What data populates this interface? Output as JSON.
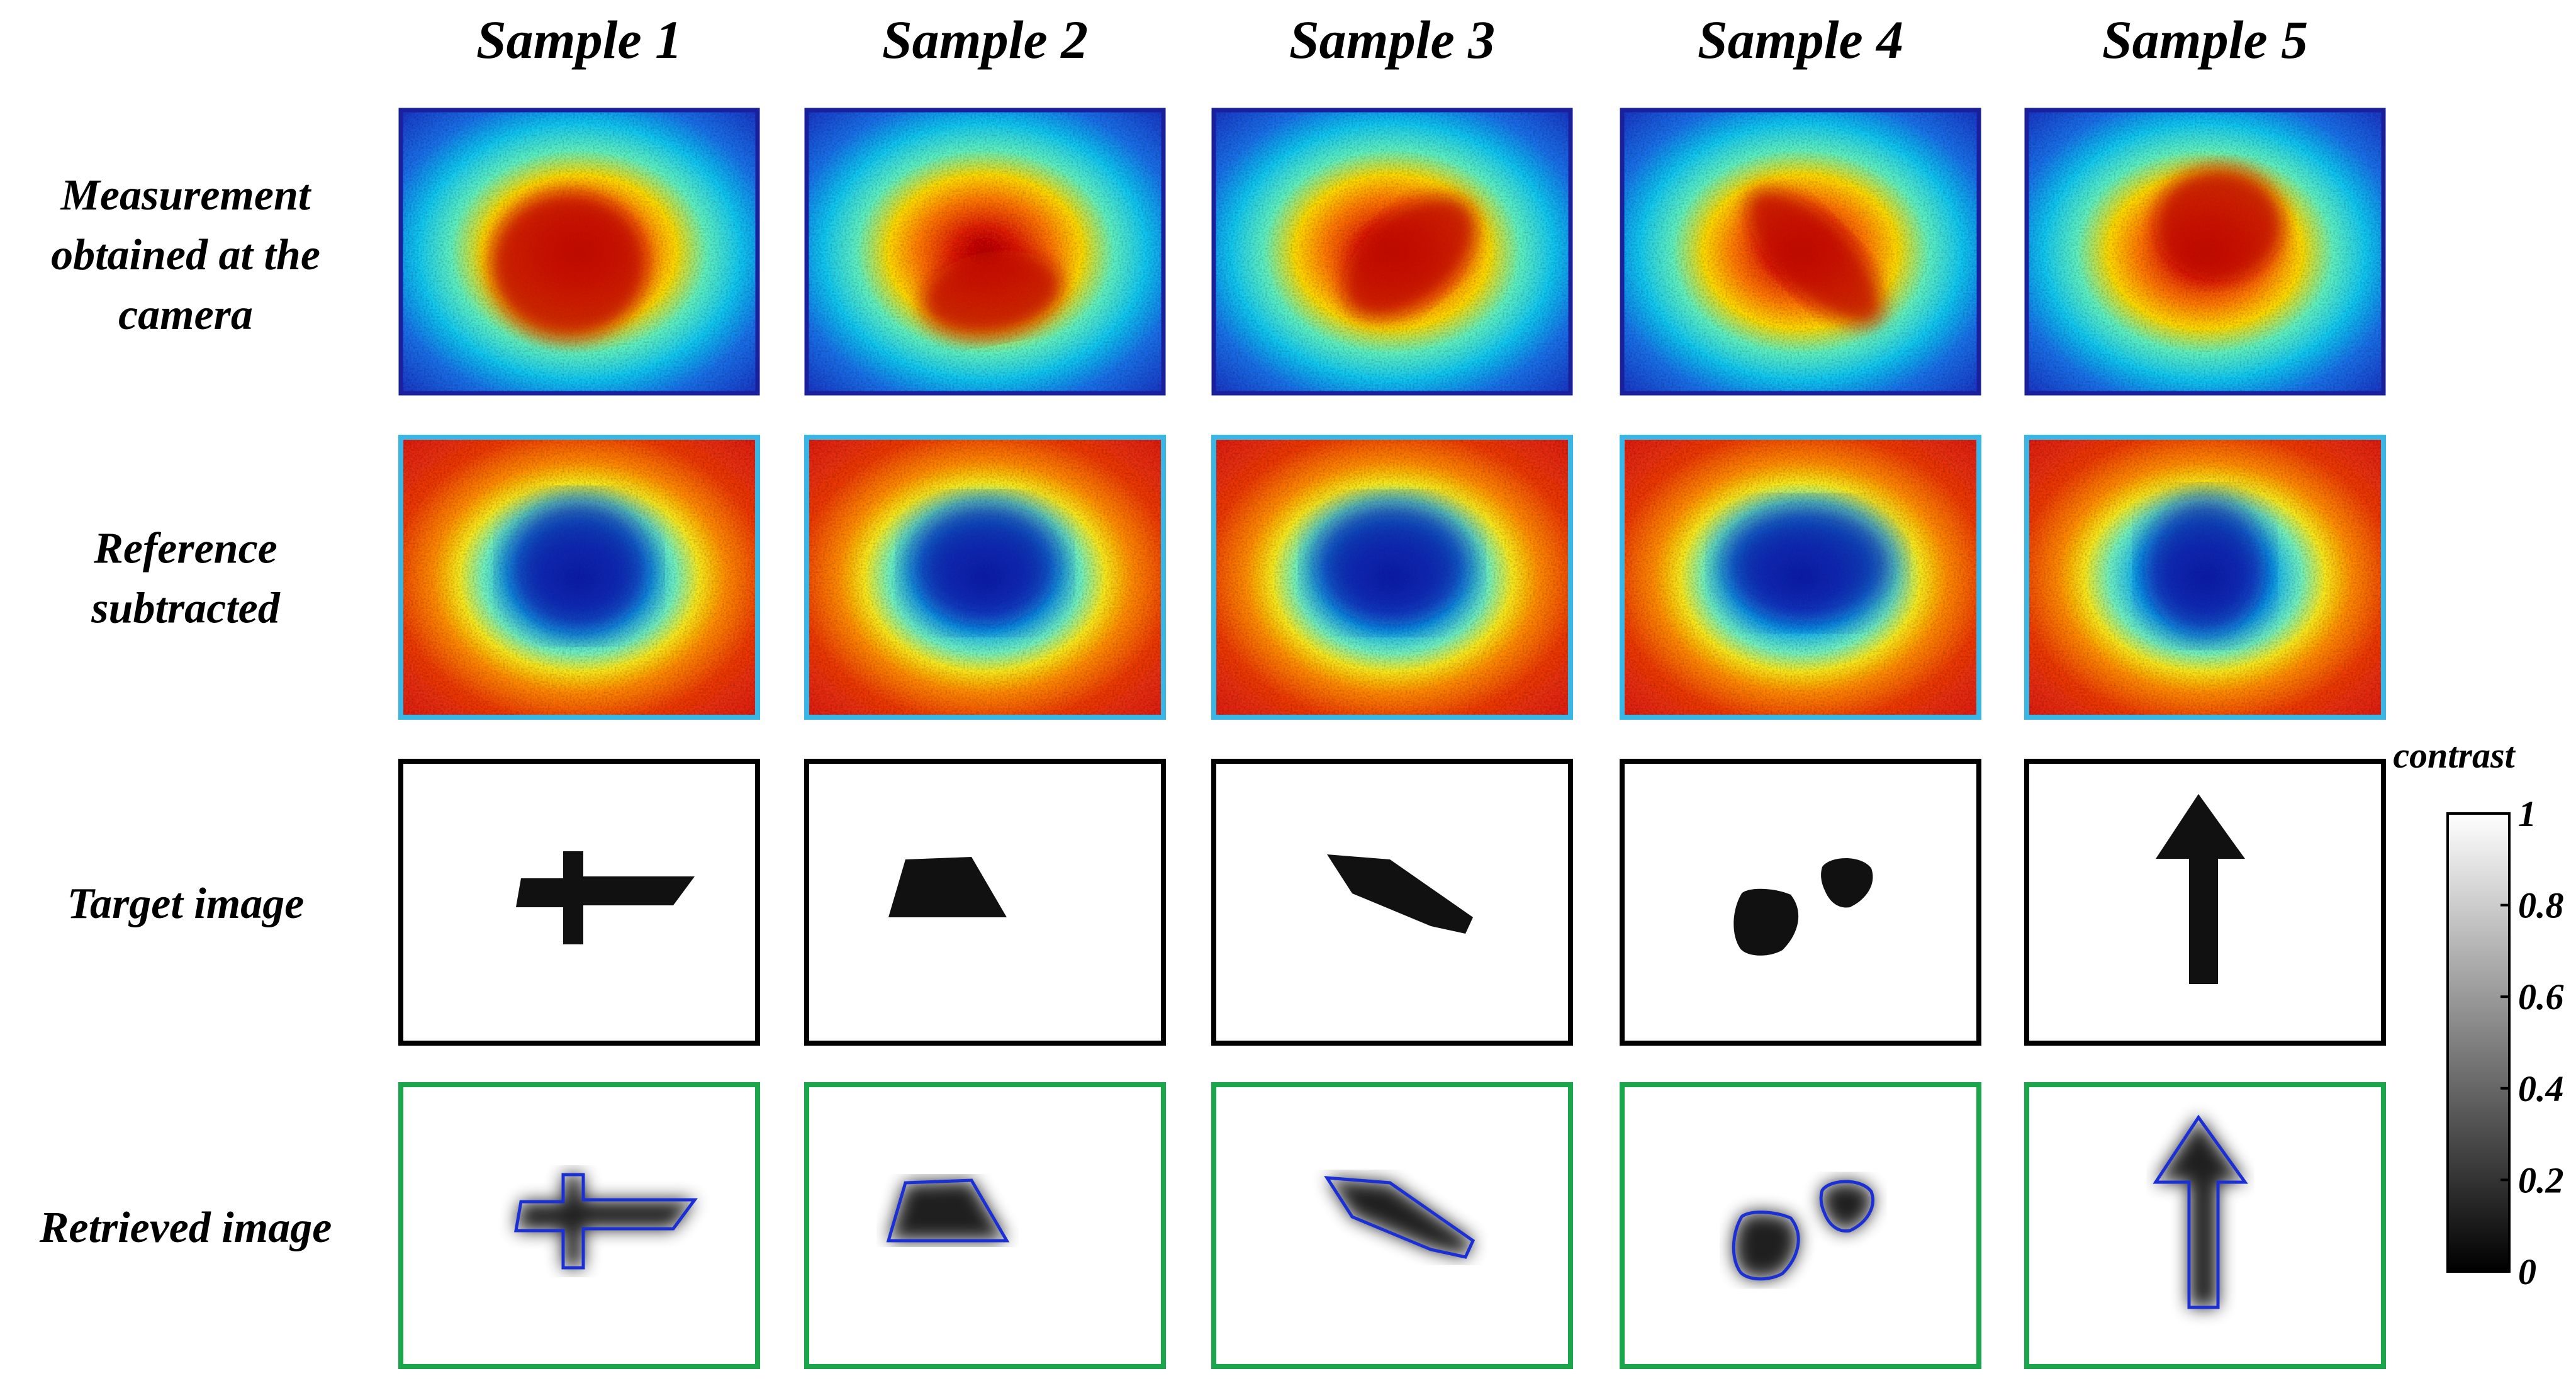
{
  "columns": [
    {
      "title": "Sample 1",
      "shape": "cross"
    },
    {
      "title": "Sample 2",
      "shape": "trapezoid"
    },
    {
      "title": "Sample 3",
      "shape": "slanted-bar"
    },
    {
      "title": "Sample 4",
      "shape": "two-blobs"
    },
    {
      "title": "Sample 5",
      "shape": "arrow"
    }
  ],
  "rows": [
    {
      "lines": [
        "Measurement",
        "obtained at the",
        "camera"
      ],
      "kind": "measurement",
      "frame_color": "#1a1f9c"
    },
    {
      "lines": [
        "Reference",
        "subtracted"
      ],
      "kind": "reference",
      "frame_color": "#38b6e6"
    },
    {
      "lines": [
        "Target image"
      ],
      "kind": "target",
      "frame_color": "#000000"
    },
    {
      "lines": [
        "Retrieved image"
      ],
      "kind": "retrieved",
      "frame_color": "#1aa64a"
    }
  ],
  "contour_color": "#1a2fd6",
  "colorbar": {
    "label": "contrast",
    "ticks": [
      "0",
      "0.2",
      "0.4",
      "0.6",
      "0.8",
      "1"
    ],
    "min": 0,
    "max": 1
  }
}
